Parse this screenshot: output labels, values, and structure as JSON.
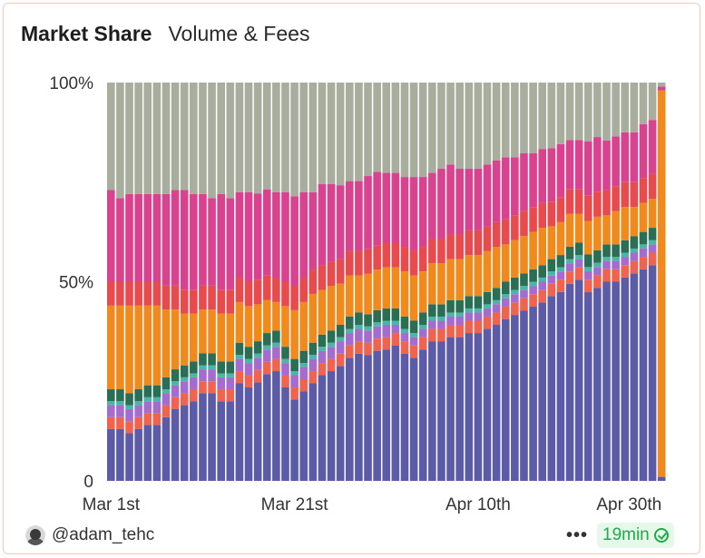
{
  "header": {
    "title": "Market Share",
    "tab": "Volume & Fees"
  },
  "footer": {
    "author": "@adam_tehc",
    "more": "•••",
    "refresh": "19min"
  },
  "chart_data": {
    "type": "bar",
    "stacked": true,
    "normalized": true,
    "ylim": [
      0,
      100
    ],
    "y_ticks": [
      "0",
      "50%",
      "100%"
    ],
    "x_ticks": [
      "Mar 1st",
      "Mar 21st",
      "Apr 10th",
      "Apr 30th"
    ],
    "categories": [
      "Mar 1",
      "Mar 2",
      "Mar 3",
      "Mar 4",
      "Mar 5",
      "Mar 6",
      "Mar 7",
      "Mar 8",
      "Mar 9",
      "Mar 10",
      "Mar 11",
      "Mar 12",
      "Mar 13",
      "Mar 14",
      "Mar 15",
      "Mar 16",
      "Mar 17",
      "Mar 18",
      "Mar 19",
      "Mar 20",
      "Mar 21",
      "Mar 22",
      "Mar 23",
      "Mar 24",
      "Mar 25",
      "Mar 26",
      "Mar 27",
      "Mar 28",
      "Mar 29",
      "Mar 30",
      "Mar 31",
      "Apr 1",
      "Apr 2",
      "Apr 3",
      "Apr 4",
      "Apr 5",
      "Apr 6",
      "Apr 7",
      "Apr 8",
      "Apr 9",
      "Apr 10",
      "Apr 11",
      "Apr 12",
      "Apr 13",
      "Apr 14",
      "Apr 15",
      "Apr 16",
      "Apr 17",
      "Apr 18",
      "Apr 19",
      "Apr 20",
      "Apr 21",
      "Apr 22",
      "Apr 23",
      "Apr 24",
      "Apr 25",
      "Apr 26",
      "Apr 27",
      "Apr 28",
      "Apr 29",
      "Apr 30"
    ],
    "colors": [
      "#5b5ba8",
      "#f0644f",
      "#a46ccf",
      "#49b6a6",
      "#2a6e55",
      "#f08a1c",
      "#e94a4d",
      "#d9428e",
      "#a8ad9d"
    ],
    "series": [
      {
        "values": [
          13,
          13,
          12,
          13,
          14,
          14,
          16,
          18,
          19,
          20,
          22,
          22,
          20,
          20,
          24,
          23,
          24,
          26,
          27,
          23,
          20,
          22,
          24,
          26,
          27,
          28,
          30,
          31,
          31,
          32,
          32,
          33,
          31,
          30,
          32,
          34,
          34,
          35,
          35,
          36,
          36,
          37,
          38,
          39,
          40,
          41,
          42,
          43,
          45,
          46,
          48,
          49,
          45,
          46,
          48,
          48,
          49,
          50,
          51,
          52,
          1
        ]
      },
      {
        "values": [
          3,
          3,
          3,
          3,
          3,
          3,
          3,
          3,
          3,
          3,
          3,
          3,
          3,
          3,
          3,
          3,
          3,
          3,
          3,
          3,
          3,
          3,
          3,
          3,
          3,
          3,
          3,
          3,
          3,
          3,
          3,
          3,
          3,
          3,
          3,
          3,
          3,
          3,
          3,
          3,
          3,
          3,
          3,
          3,
          3,
          3,
          3,
          3,
          3,
          3,
          3,
          3,
          3,
          3,
          3,
          3,
          3,
          3,
          3,
          3,
          0
        ]
      },
      {
        "values": [
          3,
          3,
          3,
          3,
          3,
          3,
          3,
          3,
          3,
          3,
          3,
          3,
          3,
          3,
          3,
          3,
          3,
          3,
          3,
          3,
          3,
          3,
          3,
          3,
          3,
          3,
          3,
          3,
          3,
          3,
          3,
          2,
          2,
          2,
          2,
          2,
          2,
          2,
          2,
          2,
          2,
          2,
          2,
          2,
          2,
          2,
          2,
          2,
          2,
          2,
          2,
          2,
          2,
          2,
          2,
          2,
          2,
          2,
          2,
          2,
          0
        ]
      },
      {
        "values": [
          1,
          1,
          1,
          1,
          1,
          1,
          1,
          1,
          1,
          1,
          1,
          1,
          1,
          1,
          1,
          1,
          1,
          1,
          1,
          1,
          1,
          1,
          1,
          1,
          1,
          1,
          1,
          1,
          1,
          1,
          1,
          1,
          1,
          1,
          1,
          1,
          1,
          1,
          1,
          1,
          1,
          1,
          1,
          1,
          1,
          1,
          1,
          1,
          1,
          1,
          1,
          1,
          1,
          1,
          1,
          1,
          1,
          1,
          1,
          1,
          0
        ]
      },
      {
        "values": [
          3,
          3,
          3,
          3,
          3,
          3,
          3,
          3,
          3,
          3,
          3,
          3,
          3,
          3,
          3,
          3,
          3,
          3,
          3,
          3,
          3,
          3,
          3,
          3,
          3,
          3,
          3,
          3,
          3,
          3,
          3,
          3,
          3,
          3,
          3,
          3,
          3,
          3,
          3,
          3,
          3,
          3,
          3,
          3,
          3,
          3,
          3,
          3,
          3,
          3,
          3,
          3,
          3,
          3,
          3,
          3,
          3,
          3,
          3,
          3,
          0
        ]
      },
      {
        "values": [
          21,
          21,
          22,
          21,
          20,
          20,
          17,
          15,
          13,
          12,
          11,
          11,
          12,
          12,
          10,
          10,
          9,
          8,
          7,
          10,
          12,
          12,
          12,
          11,
          11,
          10,
          10,
          9,
          10,
          10,
          10,
          10,
          11,
          11,
          10,
          10,
          10,
          10,
          10,
          10,
          10,
          10,
          10,
          9,
          9,
          9,
          9,
          9,
          8,
          8,
          8,
          7,
          8,
          8,
          7,
          8,
          8,
          7,
          7,
          7,
          97
        ]
      },
      {
        "values": [
          6,
          6,
          6,
          6,
          6,
          6,
          6,
          6,
          6,
          6,
          6,
          6,
          6,
          6,
          6,
          6,
          6,
          6,
          6,
          6,
          6,
          6,
          6,
          6,
          6,
          6,
          6,
          6,
          6,
          6,
          6,
          6,
          6,
          6,
          6,
          6,
          6,
          6,
          6,
          6,
          6,
          6,
          6,
          6,
          6,
          6,
          6,
          6,
          6,
          6,
          6,
          6,
          6,
          6,
          6,
          6,
          6,
          6,
          6,
          6,
          0
        ]
      },
      {
        "values": [
          23,
          21,
          22,
          22,
          22,
          22,
          23,
          24,
          25,
          24,
          23,
          22,
          24,
          23,
          21,
          22,
          21,
          21,
          21,
          22,
          22,
          21,
          19,
          20,
          19,
          18,
          17,
          17,
          18,
          18,
          17,
          17,
          17,
          18,
          17,
          16,
          17,
          17,
          16,
          15,
          15,
          15,
          15,
          15,
          14,
          14,
          13,
          13,
          13,
          13,
          12,
          12,
          13,
          13,
          12,
          12,
          12,
          12,
          13,
          13,
          1
        ]
      },
      {
        "values": [
          27,
          29,
          28,
          28,
          28,
          28,
          28,
          27,
          27,
          28,
          28,
          29,
          28,
          29,
          27,
          27,
          27,
          26,
          27,
          27,
          28,
          27,
          27,
          25,
          25,
          25,
          24,
          24,
          23,
          22,
          22,
          22,
          23,
          23,
          23,
          22,
          21,
          20,
          21,
          21,
          21,
          20,
          19,
          18,
          18,
          17,
          17,
          16,
          16,
          15,
          14,
          14,
          14,
          13,
          14,
          13,
          12,
          12,
          10,
          9,
          1
        ]
      }
    ]
  }
}
